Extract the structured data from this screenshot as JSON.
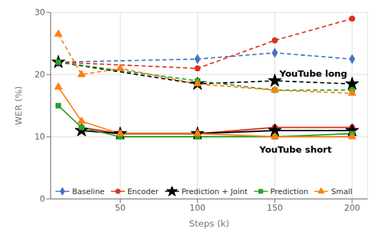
{
  "chart_data": {
    "type": "line",
    "xlabel": "Steps (k)",
    "ylabel": "WER (%)",
    "xlim": [
      5,
      210
    ],
    "xticks": [
      50,
      100,
      150,
      200
    ],
    "ylim": [
      0,
      30
    ],
    "yticks": [
      0,
      10,
      20,
      30
    ],
    "grid": true,
    "legend": "lower left",
    "series": [
      {
        "name": "Baseline",
        "color": "#4472c4",
        "marker": "diamond",
        "line_style": "dashed",
        "x": [
          10,
          100,
          150,
          200
        ],
        "values": [
          22.0,
          22.5,
          23.5,
          22.5
        ]
      },
      {
        "name": "Encoder",
        "color": "#e03020",
        "marker": "circle",
        "line_style": "dashed",
        "x": [
          10,
          100,
          150,
          200
        ],
        "values": [
          22.0,
          21.0,
          25.5,
          29.0
        ]
      },
      {
        "name": "Prediction + Joint",
        "color": "#000000",
        "marker": "star",
        "line_style": "dashed",
        "x": [
          10,
          100,
          150,
          200
        ],
        "values": [
          22.0,
          18.5,
          19.0,
          18.5
        ]
      },
      {
        "name": "Prediction",
        "color": "#2ca02c",
        "marker": "square",
        "line_style": "dashed",
        "x": [
          10,
          100,
          150,
          200
        ],
        "values": [
          22.0,
          19.0,
          17.5,
          17.5
        ]
      },
      {
        "name": "Small",
        "color": "#ff7f0e",
        "marker": "triangle",
        "line_style": "dashed",
        "x": [
          10,
          25,
          50,
          100,
          150,
          200
        ],
        "values": [
          26.5,
          20.0,
          21.0,
          18.5,
          17.5,
          17.0
        ]
      },
      {
        "name": "Encoder",
        "color": "#e03020",
        "marker": "circle",
        "line_style": "solid",
        "x": [
          25,
          50,
          100,
          150,
          200
        ],
        "values": [
          11.5,
          10.5,
          10.5,
          11.5,
          11.5
        ]
      },
      {
        "name": "Prediction + Joint",
        "color": "#000000",
        "marker": "star",
        "line_style": "solid",
        "x": [
          25,
          50,
          100,
          150,
          200
        ],
        "values": [
          11.0,
          10.5,
          10.5,
          11.0,
          11.0
        ]
      },
      {
        "name": "Prediction",
        "color": "#2ca02c",
        "marker": "square",
        "line_style": "solid",
        "x": [
          10,
          25,
          50,
          100,
          150,
          200
        ],
        "values": [
          15.0,
          11.5,
          10.0,
          10.0,
          10.0,
          10.5
        ]
      },
      {
        "name": "Small",
        "color": "#ff7f0e",
        "marker": "triangle",
        "line_style": "solid",
        "x": [
          10,
          25,
          50,
          100,
          150,
          200
        ],
        "values": [
          18.0,
          12.5,
          10.5,
          10.5,
          10.0,
          10.0
        ]
      }
    ],
    "annotations": [
      {
        "text": "YouTube long",
        "x": 153,
        "y": 20.2
      },
      {
        "text": "YouTube short",
        "x": 140,
        "y": 8.0
      }
    ]
  }
}
